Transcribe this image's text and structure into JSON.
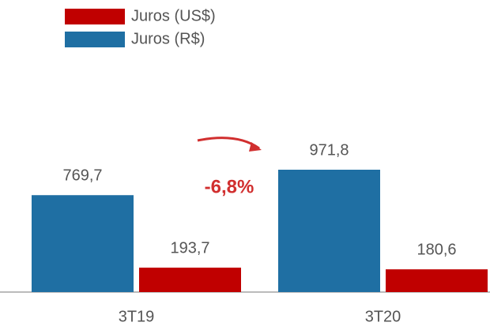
{
  "chart_data": {
    "type": "bar",
    "categories": [
      "3T19",
      "3T20"
    ],
    "series": [
      {
        "name": "Juros (R$)",
        "color": "#1f6fa3",
        "values": [
          769.7,
          971.8
        ],
        "value_labels": [
          "769,7",
          "971,8"
        ]
      },
      {
        "name": "Juros (US$)",
        "color": "#c00000",
        "values": [
          193.7,
          180.6
        ],
        "value_labels": [
          "193,7",
          "180,6"
        ]
      }
    ],
    "annotation": "-6,8%",
    "annotation_color": "#d12f2f"
  }
}
